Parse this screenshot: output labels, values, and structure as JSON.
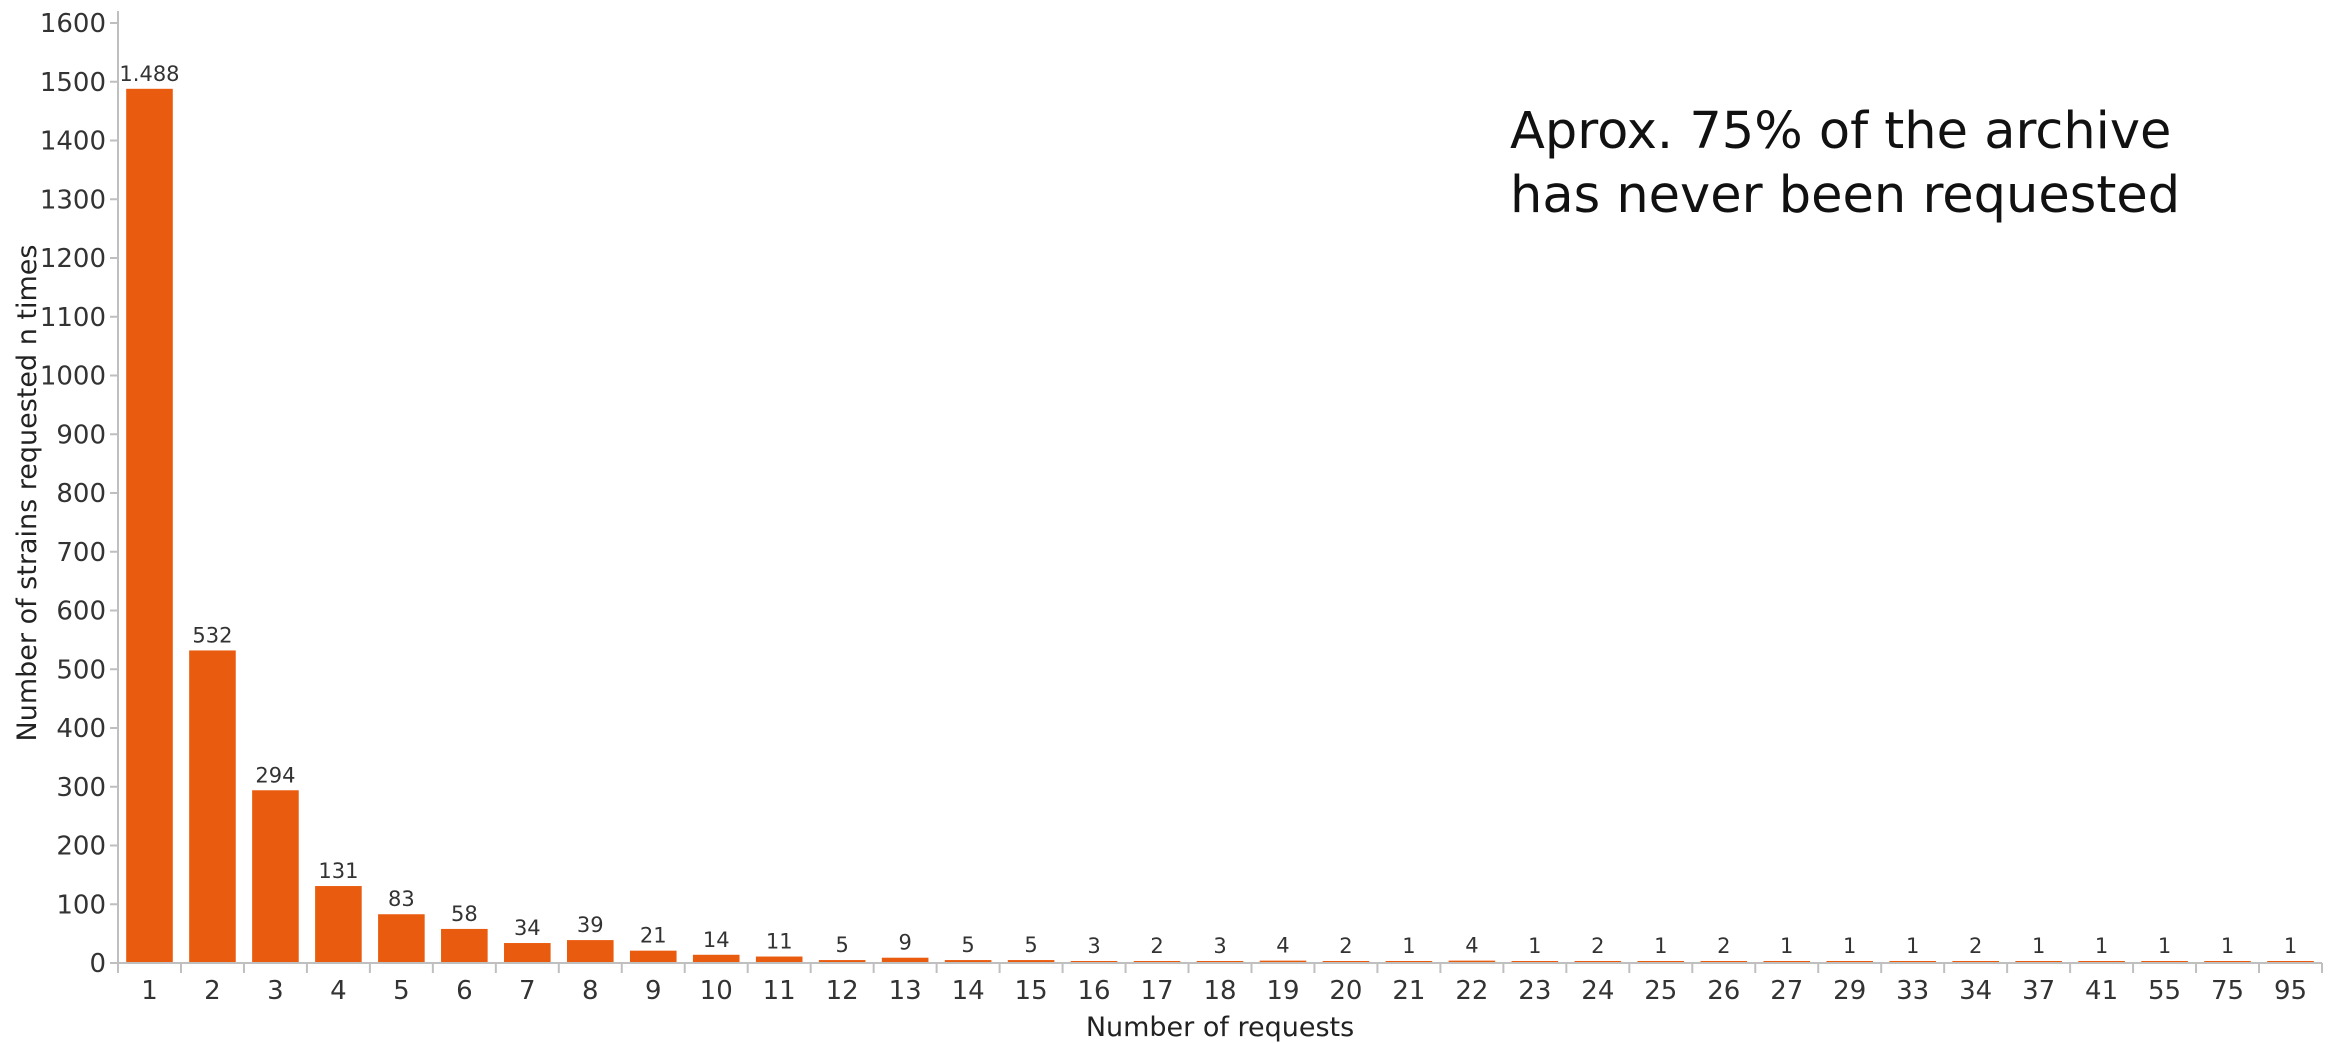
{
  "chart_data": {
    "type": "bar",
    "categories": [
      "1",
      "2",
      "3",
      "4",
      "5",
      "6",
      "7",
      "8",
      "9",
      "10",
      "11",
      "12",
      "13",
      "14",
      "15",
      "16",
      "17",
      "18",
      "19",
      "20",
      "21",
      "22",
      "23",
      "24",
      "25",
      "26",
      "27",
      "29",
      "33",
      "34",
      "37",
      "41",
      "55",
      "75",
      "95"
    ],
    "values": [
      1488,
      532,
      294,
      131,
      83,
      58,
      34,
      39,
      21,
      14,
      11,
      5,
      9,
      5,
      5,
      3,
      2,
      3,
      4,
      2,
      1,
      4,
      1,
      2,
      1,
      2,
      1,
      1,
      1,
      2,
      1,
      1,
      1,
      1,
      1
    ],
    "value_labels": [
      "1.488",
      "532",
      "294",
      "131",
      "83",
      "58",
      "34",
      "39",
      "21",
      "14",
      "11",
      "5",
      "9",
      "5",
      "5",
      "3",
      "2",
      "3",
      "4",
      "2",
      "1",
      "4",
      "1",
      "2",
      "1",
      "2",
      "1",
      "1",
      "1",
      "2",
      "1",
      "1",
      "1",
      "1",
      "1"
    ],
    "title": "",
    "xlabel": "Number of requests",
    "ylabel": "Number of strains requested n times",
    "ylim": [
      0,
      1600
    ],
    "yticks": [
      0,
      100,
      200,
      300,
      400,
      500,
      600,
      700,
      800,
      900,
      1000,
      1100,
      1200,
      1300,
      1400,
      1500,
      1600
    ],
    "bar_color": "#E95C0F",
    "grid": false,
    "annotation": [
      "Aprox. 75% of the archive",
      "has never been requested"
    ]
  }
}
